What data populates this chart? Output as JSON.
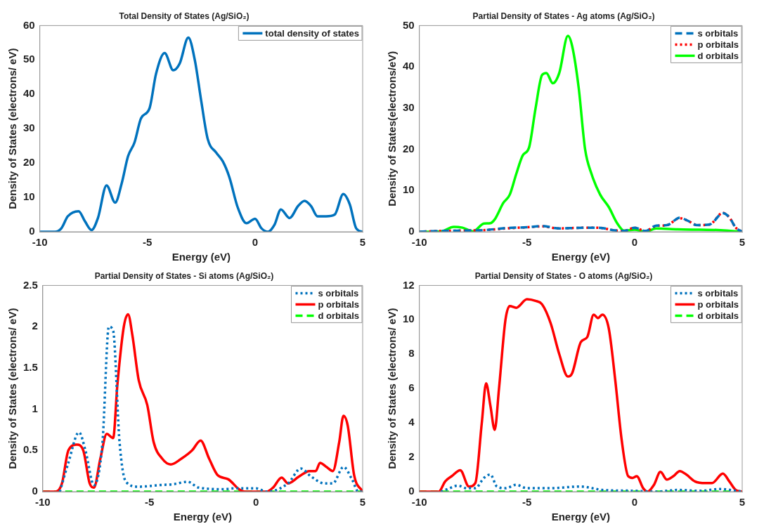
{
  "chart_data": [
    {
      "type": "line",
      "title": "Total Density of States (Ag/SiO₂)",
      "xlabel": "Energy (eV)",
      "ylabel": "Density of States (electrons/ eV)",
      "xlim": [
        -10,
        5
      ],
      "xticks": [
        -10,
        -5,
        0,
        5
      ],
      "ylim": [
        0,
        60
      ],
      "yticks": [
        0,
        10,
        20,
        30,
        40,
        50,
        60
      ],
      "grid": false,
      "legend": "top right",
      "marker": "none",
      "series": [
        {
          "name": "total density of states",
          "color": "#0072bd",
          "line_style": "solid",
          "x": [
            -10,
            -9.3,
            -9,
            -8.7,
            -8.2,
            -7.9,
            -7.6,
            -7.3,
            -6.9,
            -6.5,
            -6.2,
            -5.9,
            -5.6,
            -5.3,
            -4.9,
            -4.6,
            -4.2,
            -3.8,
            -3.5,
            -3.1,
            -2.8,
            -2.5,
            -2.2,
            -1.8,
            -1.5,
            -1.2,
            -0.8,
            -0.4,
            0,
            0.3,
            0.6,
            0.9,
            1.2,
            1.6,
            2,
            2.3,
            2.6,
            2.9,
            3.3,
            3.7,
            4.1,
            4.4,
            4.7,
            5
          ],
          "values": [
            0,
            0,
            1,
            4.5,
            6,
            3,
            0.5,
            4,
            13.5,
            8.5,
            14,
            22,
            26,
            33,
            36,
            46,
            52,
            47,
            49,
            56.5,
            50,
            38,
            27,
            23,
            20.5,
            16,
            7,
            2.5,
            3.8,
            1,
            0,
            2,
            6.5,
            4,
            7.5,
            9,
            7.5,
            4.5,
            4.5,
            5,
            11,
            8,
            1,
            0
          ]
        }
      ]
    },
    {
      "type": "line",
      "title": "Partial Density of States - Ag atoms (Ag/SiO₂)",
      "xlabel": "Energy (eV)",
      "ylabel": "Density of States(electrons/eV)",
      "xlim": [
        -10,
        5
      ],
      "xticks": [
        -10,
        -5,
        0,
        5
      ],
      "ylim": [
        0,
        50
      ],
      "yticks": [
        0,
        10,
        20,
        30,
        40,
        50
      ],
      "grid": false,
      "legend": "top right",
      "marker": "none",
      "series": [
        {
          "name": "s orbitals",
          "color": "#0072bd",
          "line_style": "dashed",
          "x": [
            -10,
            -9,
            -8,
            -7,
            -6,
            -5,
            -4.3,
            -3.5,
            -3,
            -2,
            -1.5,
            -1,
            -0.5,
            0,
            0.5,
            1,
            1.5,
            2.1,
            2.5,
            2.9,
            3.5,
            4.1,
            4.4,
            4.7,
            5
          ],
          "values": [
            0,
            0.2,
            0.3,
            0.4,
            0.9,
            1.1,
            1.4,
            0.8,
            0.9,
            1,
            0.9,
            0.4,
            0.2,
            1,
            0.2,
            1.5,
            1.6,
            3.4,
            2.6,
            1.6,
            1.8,
            4.5,
            3.5,
            1,
            0
          ]
        },
        {
          "name": "p orbitals",
          "color": "#ff0000",
          "line_style": "dotted",
          "x": [
            -10,
            -9,
            -8,
            -7,
            -6,
            -5,
            -4.3,
            -3.5,
            -3,
            -2,
            -1.5,
            -1,
            -0.5,
            0,
            0.5,
            1,
            1.5,
            2.1,
            2.5,
            2.9,
            3.5,
            4.1,
            4.4,
            4.7,
            5
          ],
          "values": [
            0,
            0.2,
            0.3,
            0.4,
            0.8,
            1.1,
            1.3,
            0.8,
            0.9,
            1,
            0.9,
            0.4,
            0.2,
            1,
            0.2,
            1.4,
            1.6,
            3.3,
            2.6,
            1.6,
            1.8,
            4.6,
            3.5,
            1,
            0
          ]
        },
        {
          "name": "d orbitals",
          "color": "#00ff00",
          "line_style": "solid",
          "x": [
            -10,
            -9,
            -8.4,
            -8,
            -7.5,
            -7,
            -6.7,
            -6.5,
            -6.1,
            -5.8,
            -5.5,
            -5.2,
            -4.9,
            -4.6,
            -4.3,
            -4.1,
            -3.8,
            -3.5,
            -3.1,
            -2.9,
            -2.6,
            -2.3,
            -2,
            -1.6,
            -1.2,
            -0.8,
            -0.5,
            0,
            0.5,
            1,
            2,
            3,
            4,
            5
          ],
          "values": [
            0,
            0.1,
            1.2,
            1,
            0.1,
            2,
            2.1,
            3,
            7,
            9,
            14,
            18.5,
            20.5,
            30,
            38,
            38.5,
            36,
            38.5,
            47.5,
            45,
            35,
            20,
            14,
            9,
            6,
            2,
            0.3,
            0.5,
            0,
            0.8,
            0.6,
            0.5,
            0.4,
            0
          ]
        }
      ]
    },
    {
      "type": "line",
      "title": "Partial Density of States - Si atoms (Ag/SiO₂)",
      "xlabel": "Energy (eV)",
      "ylabel": "Density of States (electrons/ eV)",
      "xlim": [
        -10,
        5
      ],
      "xticks": [
        -10,
        -5,
        0,
        5
      ],
      "ylim": [
        0,
        2.5
      ],
      "yticks": [
        0,
        0.5,
        1,
        1.5,
        2,
        2.5
      ],
      "grid": false,
      "legend": "top right",
      "marker": "none",
      "series": [
        {
          "name": "s orbitals",
          "color": "#0072bd",
          "line_style": "dotted",
          "x": [
            -9.2,
            -8.8,
            -8.3,
            -8,
            -7.6,
            -7.2,
            -6.9,
            -6.7,
            -6.4,
            -6.1,
            -5.5,
            -4.5,
            -3.9,
            -3.2,
            -2.7,
            -1.5,
            -1,
            0,
            0.5,
            1.5,
            2.1,
            2.6,
            3.2,
            3.6,
            4.1,
            4.5,
            4.8,
            5
          ],
          "values": [
            0,
            0.35,
            0.72,
            0.5,
            0.08,
            0.6,
            2,
            1.95,
            0.6,
            0.12,
            0.06,
            0.08,
            0.09,
            0.12,
            0.05,
            0.03,
            0.04,
            0.04,
            0,
            0.1,
            0.28,
            0.18,
            0.1,
            0.1,
            0.3,
            0.15,
            0,
            0
          ]
        },
        {
          "name": "p orbitals",
          "color": "#ff0000",
          "line_style": "solid",
          "x": [
            -10,
            -9.4,
            -9.1,
            -8.8,
            -8.4,
            -8.1,
            -7.8,
            -7.6,
            -7.3,
            -7,
            -6.7,
            -6.5,
            -6.2,
            -6,
            -5.8,
            -5.5,
            -5.1,
            -4.8,
            -4.4,
            -4,
            -3.5,
            -3,
            -2.6,
            -2.2,
            -1.8,
            -1.3,
            -0.8,
            -0.5,
            0.5,
            0.8,
            1.2,
            1.5,
            2,
            2.5,
            2.8,
            3,
            3.3,
            3.6,
            3.9,
            4.1,
            4.3,
            4.6,
            5
          ],
          "values": [
            0,
            0,
            0.1,
            0.5,
            0.57,
            0.5,
            0.1,
            0.05,
            0.4,
            0.7,
            0.65,
            1.3,
            2,
            2.15,
            1.9,
            1.35,
            1.05,
            0.6,
            0.4,
            0.33,
            0.4,
            0.5,
            0.62,
            0.4,
            0.2,
            0.15,
            0.03,
            0,
            0,
            0.05,
            0.17,
            0.1,
            0.18,
            0.25,
            0.25,
            0.35,
            0.3,
            0.25,
            0.6,
            0.92,
            0.8,
            0.2,
            0
          ]
        },
        {
          "name": "d orbitals",
          "color": "#00ff00",
          "line_style": "dashed",
          "x": [
            -10,
            5
          ],
          "values": [
            0,
            0
          ]
        }
      ]
    },
    {
      "type": "line",
      "title": "Partial Density of States - O atoms (Ag/SiO₂)",
      "xlabel": "Energy (eV)",
      "ylabel": "Density of States (electrons/ eV)",
      "xlim": [
        -10,
        5
      ],
      "xticks": [
        -10,
        -5,
        0,
        5
      ],
      "ylim": [
        0,
        12
      ],
      "yticks": [
        0,
        2,
        4,
        6,
        8,
        10,
        12
      ],
      "grid": false,
      "legend": "top right",
      "marker": "none",
      "series": [
        {
          "name": "s orbitals",
          "color": "#0072bd",
          "line_style": "dotted",
          "x": [
            -9,
            -8.7,
            -8.2,
            -7.8,
            -7.4,
            -7,
            -6.7,
            -6.4,
            -6,
            -5.5,
            -5,
            -4,
            -2.5,
            -1.5,
            0,
            1,
            2,
            3,
            4,
            5
          ],
          "values": [
            0,
            0.15,
            0.35,
            0.2,
            0.2,
            0.8,
            1,
            0.3,
            0.2,
            0.4,
            0.2,
            0.2,
            0.3,
            0.1,
            0.05,
            0,
            0.1,
            0.05,
            0.15,
            0
          ]
        },
        {
          "name": "p orbitals",
          "color": "#ff0000",
          "line_style": "solid",
          "x": [
            -10,
            -9.1,
            -8.8,
            -8.5,
            -8.1,
            -7.7,
            -7.4,
            -7.1,
            -6.9,
            -6.7,
            -6.5,
            -6.3,
            -6,
            -5.8,
            -5.5,
            -5,
            -4.6,
            -4.3,
            -3.9,
            -3.5,
            -3.1,
            -2.9,
            -2.5,
            -2.2,
            -1.9,
            -1.7,
            -1.5,
            -1.2,
            -0.9,
            -0.6,
            -0.3,
            -0.1,
            0.1,
            0.4,
            0.6,
            0.9,
            1.2,
            1.5,
            1.8,
            2.1,
            2.4,
            2.8,
            3.3,
            3.6,
            4.1,
            4.4,
            4.7,
            5
          ],
          "values": [
            0,
            0,
            0.6,
            0.9,
            1.25,
            0.3,
            0.5,
            4,
            6.3,
            5,
            3.6,
            6,
            10,
            10.8,
            10.7,
            11.2,
            11.1,
            10.9,
            9.8,
            8,
            6.7,
            6.9,
            8.7,
            9,
            10.3,
            10.1,
            10.3,
            9.5,
            6.5,
            3,
            0.9,
            0.8,
            0.9,
            0.2,
            0,
            0.4,
            1.15,
            0.7,
            0.9,
            1.2,
            1,
            0.6,
            0.5,
            0.5,
            1.05,
            0.6,
            0.1,
            0
          ]
        },
        {
          "name": "d orbitals",
          "color": "#00ff00",
          "line_style": "dashed",
          "x": [
            -10,
            5
          ],
          "values": [
            0,
            0
          ]
        }
      ]
    }
  ]
}
